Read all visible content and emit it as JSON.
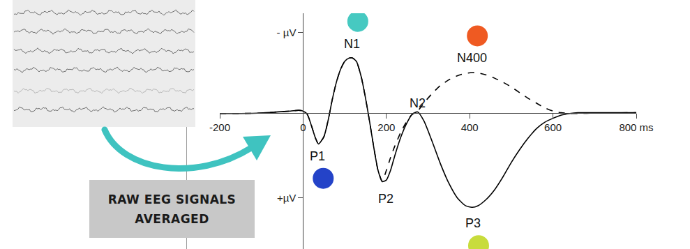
{
  "chart_data": {
    "type": "line",
    "x": [
      -200,
      -150,
      -100,
      -60,
      -30,
      -10,
      0,
      10,
      20,
      30,
      37,
      50,
      60,
      70,
      80,
      90,
      100,
      110,
      118,
      128,
      140,
      150,
      160,
      170,
      180,
      190,
      200,
      210,
      220,
      235,
      250,
      262,
      275,
      290,
      310,
      330,
      350,
      370,
      390,
      406,
      420,
      440,
      460,
      480,
      500,
      520,
      540,
      560,
      580,
      600,
      620,
      640,
      660,
      700,
      800
    ],
    "series": [
      {
        "color": "#000000",
        "line_style": "solid",
        "values": [
          0.05,
          0.05,
          0.02,
          -0.05,
          -0.1,
          -0.15,
          -0.1,
          0.1,
          0.8,
          1.6,
          1.95,
          1.5,
          0.5,
          -0.8,
          -1.9,
          -2.7,
          -3.2,
          -3.4,
          -3.42,
          -3.2,
          -2.2,
          -0.9,
          0.6,
          2.2,
          3.6,
          4.3,
          4.2,
          3.6,
          2.7,
          1.5,
          0.6,
          0.1,
          -0.05,
          0.5,
          1.8,
          3.2,
          4.4,
          5.3,
          5.8,
          5.9,
          5.8,
          5.4,
          4.8,
          4.0,
          3.1,
          2.3,
          1.6,
          1.0,
          0.6,
          0.35,
          0.15,
          0.05,
          0,
          0,
          0
        ]
      },
      {
        "color": "#000000",
        "line_style": "dashed",
        "values": [
          0.05,
          0.05,
          0.02,
          -0.05,
          -0.1,
          -0.15,
          -0.1,
          0.1,
          0.8,
          1.6,
          1.95,
          1.5,
          0.5,
          -0.8,
          -1.9,
          -2.7,
          -3.2,
          -3.4,
          -3.42,
          -3.2,
          -2.2,
          -0.9,
          0.6,
          2.2,
          3.6,
          4.25,
          3.6,
          2.8,
          2.1,
          1.2,
          0.5,
          0.1,
          -0.1,
          -0.6,
          -1.2,
          -1.7,
          -2.05,
          -2.3,
          -2.45,
          -2.5,
          -2.48,
          -2.35,
          -2.15,
          -1.9,
          -1.6,
          -1.25,
          -0.9,
          -0.6,
          -0.3,
          -0.1,
          0,
          0.05,
          0.05,
          0.02,
          0
        ]
      }
    ],
    "xlim": [
      -200,
      800
    ],
    "xticks": [
      -200,
      0,
      200,
      400,
      600,
      {
        "value": 800,
        "label": "800 ms"
      }
    ],
    "ylim": [
      8.5,
      -6.2
    ],
    "yticks": [
      {
        "value": -5,
        "label": "- µV"
      },
      {
        "value": 5.3,
        "label": "+µV"
      }
    ],
    "grid": false,
    "annotations": [
      {
        "text": "N1",
        "x": 118,
        "y": -4.3,
        "color": "#46c9c1"
      },
      {
        "text": "P1",
        "x": 35,
        "y": 2.7,
        "color": "#2443c8"
      },
      {
        "text": "P2",
        "x": 198,
        "y": 5.35
      },
      {
        "text": "N2",
        "x": 275,
        "y": -0.6
      },
      {
        "text": "N400",
        "x": 405,
        "y": -3.4,
        "color": "#ef5a22"
      },
      {
        "text": "P3",
        "x": 408,
        "y": 6.9,
        "color": "#c8dc3c"
      }
    ]
  },
  "inset": {
    "caption": [
      "RAW EEG SIGNALS",
      "AVERAGED"
    ]
  }
}
